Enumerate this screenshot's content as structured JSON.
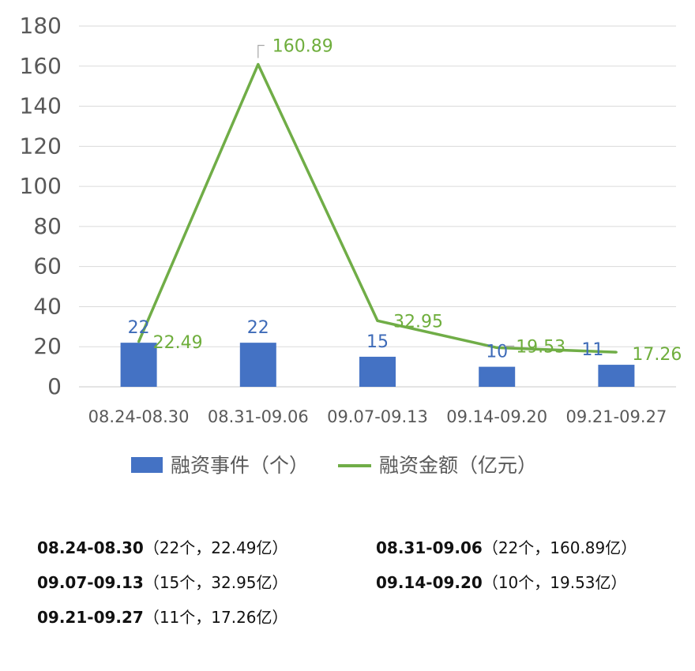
{
  "chart_data": {
    "type": "bar",
    "categories": [
      "08.24-08.30",
      "08.31-09.06",
      "09.07-09.13",
      "09.14-09.20",
      "09.21-09.27"
    ],
    "series": [
      {
        "name": "融资事件（个）",
        "kind": "bar",
        "color": "#4472C4",
        "label_color": "#3E6BB8",
        "values": [
          22,
          22,
          15,
          10,
          11
        ],
        "labels": [
          "22",
          "22",
          "15",
          "10",
          "11"
        ]
      },
      {
        "name": "融资金额（亿元）",
        "kind": "line",
        "color": "#70AD47",
        "label_color": "#6FAE3D",
        "values": [
          22.49,
          160.89,
          32.95,
          19.53,
          17.26
        ],
        "labels": [
          "22.49",
          "160.89",
          "32.95",
          "19.53",
          "17.26"
        ]
      }
    ],
    "ylim": [
      0,
      180
    ],
    "yticks": [
      "0",
      "20",
      "40",
      "60",
      "80",
      "100",
      "120",
      "140",
      "160",
      "180"
    ],
    "grid": true,
    "legend_position": "bottom"
  },
  "summary": [
    {
      "period": "08.24-08.30",
      "detail": "（22个，22.49亿）"
    },
    {
      "period": "08.31-09.06",
      "detail": "（22个，160.89亿）"
    },
    {
      "period": "09.07-09.13",
      "detail": "（15个，32.95亿）"
    },
    {
      "period": "09.14-09.20",
      "detail": "（10个，19.53亿）"
    },
    {
      "period": "09.21-09.27",
      "detail": "（11个，17.26亿）"
    }
  ]
}
